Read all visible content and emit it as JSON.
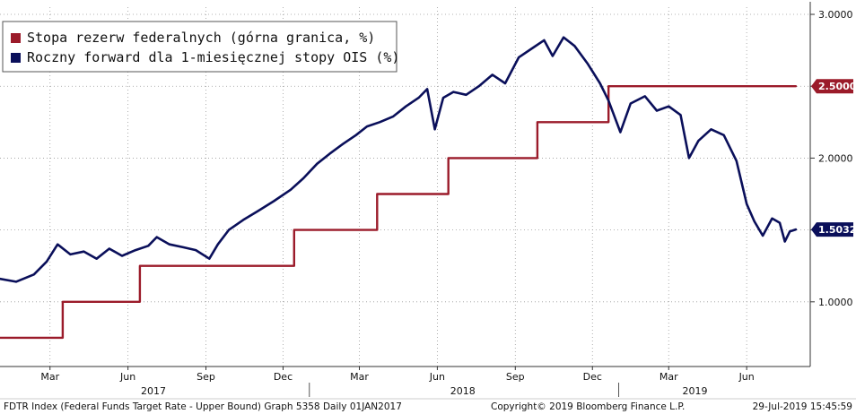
{
  "chart_data": {
    "type": "line",
    "title": "",
    "xlabel": "",
    "ylabel": "",
    "x_range": [
      "2017-01-01",
      "2019-08-15"
    ],
    "ylim": [
      0.55,
      3.05
    ],
    "y_ticks": [
      "3.0000",
      "2.5000",
      "2.0000",
      "1.5000",
      "1.0000"
    ],
    "y_tick_values": [
      3.0,
      2.5,
      2.0,
      1.5,
      1.0
    ],
    "x_month_ticks": [
      {
        "label": "Mar",
        "date": "2017-03-01"
      },
      {
        "label": "Jun",
        "date": "2017-06-01"
      },
      {
        "label": "Sep",
        "date": "2017-09-01"
      },
      {
        "label": "Dec",
        "date": "2017-12-01"
      },
      {
        "label": "Mar",
        "date": "2018-03-01"
      },
      {
        "label": "Jun",
        "date": "2018-06-01"
      },
      {
        "label": "Sep",
        "date": "2018-09-01"
      },
      {
        "label": "Dec",
        "date": "2018-12-01"
      },
      {
        "label": "Mar",
        "date": "2019-03-01"
      },
      {
        "label": "Jun",
        "date": "2019-06-01"
      }
    ],
    "x_year_labels": [
      {
        "label": "2017",
        "date": "2017-07-01"
      },
      {
        "label": "2018",
        "date": "2018-07-01"
      },
      {
        "label": "2019",
        "date": "2019-04-01"
      }
    ],
    "x_year_dividers": [
      "2018-01-01",
      "2019-01-01"
    ],
    "grid": true,
    "legend_position": "top-left",
    "series": [
      {
        "name": "Stopa rezerw federalnych (górna granica, %)",
        "color": "#9b1b2a",
        "style": "step",
        "last_value_label": "2.5000",
        "points": [
          {
            "x": "2017-01-01",
            "y": 0.75
          },
          {
            "x": "2017-03-16",
            "y": 1.0
          },
          {
            "x": "2017-06-15",
            "y": 1.25
          },
          {
            "x": "2017-12-14",
            "y": 1.5
          },
          {
            "x": "2018-03-22",
            "y": 1.75
          },
          {
            "x": "2018-06-14",
            "y": 2.0
          },
          {
            "x": "2018-09-27",
            "y": 2.25
          },
          {
            "x": "2018-12-20",
            "y": 2.5
          },
          {
            "x": "2019-07-29",
            "y": 2.5
          }
        ]
      },
      {
        "name": "Roczny forward dla 1-miesięcznej stopy OIS (%)",
        "color": "#0a0f5a",
        "style": "line",
        "last_value_label": "1.5032",
        "points": [
          {
            "x": "2017-01-01",
            "y": 1.16
          },
          {
            "x": "2017-01-20",
            "y": 1.14
          },
          {
            "x": "2017-02-10",
            "y": 1.19
          },
          {
            "x": "2017-02-25",
            "y": 1.28
          },
          {
            "x": "2017-03-10",
            "y": 1.4
          },
          {
            "x": "2017-03-25",
            "y": 1.33
          },
          {
            "x": "2017-04-10",
            "y": 1.35
          },
          {
            "x": "2017-04-25",
            "y": 1.3
          },
          {
            "x": "2017-05-10",
            "y": 1.37
          },
          {
            "x": "2017-05-25",
            "y": 1.32
          },
          {
            "x": "2017-06-10",
            "y": 1.36
          },
          {
            "x": "2017-06-25",
            "y": 1.39
          },
          {
            "x": "2017-07-05",
            "y": 1.45
          },
          {
            "x": "2017-07-20",
            "y": 1.4
          },
          {
            "x": "2017-08-05",
            "y": 1.38
          },
          {
            "x": "2017-08-20",
            "y": 1.36
          },
          {
            "x": "2017-09-05",
            "y": 1.3
          },
          {
            "x": "2017-09-15",
            "y": 1.4
          },
          {
            "x": "2017-09-28",
            "y": 1.5
          },
          {
            "x": "2017-10-15",
            "y": 1.57
          },
          {
            "x": "2017-11-01",
            "y": 1.63
          },
          {
            "x": "2017-11-20",
            "y": 1.7
          },
          {
            "x": "2017-12-10",
            "y": 1.78
          },
          {
            "x": "2017-12-25",
            "y": 1.86
          },
          {
            "x": "2018-01-10",
            "y": 1.96
          },
          {
            "x": "2018-01-25",
            "y": 2.03
          },
          {
            "x": "2018-02-10",
            "y": 2.1
          },
          {
            "x": "2018-02-25",
            "y": 2.16
          },
          {
            "x": "2018-03-10",
            "y": 2.22
          },
          {
            "x": "2018-03-25",
            "y": 2.25
          },
          {
            "x": "2018-04-10",
            "y": 2.29
          },
          {
            "x": "2018-04-25",
            "y": 2.36
          },
          {
            "x": "2018-05-10",
            "y": 2.42
          },
          {
            "x": "2018-05-20",
            "y": 2.48
          },
          {
            "x": "2018-05-29",
            "y": 2.2
          },
          {
            "x": "2018-06-08",
            "y": 2.42
          },
          {
            "x": "2018-06-20",
            "y": 2.46
          },
          {
            "x": "2018-07-05",
            "y": 2.44
          },
          {
            "x": "2018-07-20",
            "y": 2.5
          },
          {
            "x": "2018-08-05",
            "y": 2.58
          },
          {
            "x": "2018-08-20",
            "y": 2.52
          },
          {
            "x": "2018-09-05",
            "y": 2.7
          },
          {
            "x": "2018-09-20",
            "y": 2.76
          },
          {
            "x": "2018-10-05",
            "y": 2.82
          },
          {
            "x": "2018-10-15",
            "y": 2.71
          },
          {
            "x": "2018-10-28",
            "y": 2.84
          },
          {
            "x": "2018-11-10",
            "y": 2.78
          },
          {
            "x": "2018-11-25",
            "y": 2.66
          },
          {
            "x": "2018-12-10",
            "y": 2.52
          },
          {
            "x": "2018-12-20",
            "y": 2.4
          },
          {
            "x": "2019-01-03",
            "y": 2.18
          },
          {
            "x": "2019-01-15",
            "y": 2.38
          },
          {
            "x": "2019-02-01",
            "y": 2.43
          },
          {
            "x": "2019-02-15",
            "y": 2.33
          },
          {
            "x": "2019-03-01",
            "y": 2.36
          },
          {
            "x": "2019-03-15",
            "y": 2.3
          },
          {
            "x": "2019-03-25",
            "y": 2.0
          },
          {
            "x": "2019-04-05",
            "y": 2.12
          },
          {
            "x": "2019-04-20",
            "y": 2.2
          },
          {
            "x": "2019-05-05",
            "y": 2.16
          },
          {
            "x": "2019-05-20",
            "y": 1.98
          },
          {
            "x": "2019-06-01",
            "y": 1.68
          },
          {
            "x": "2019-06-10",
            "y": 1.56
          },
          {
            "x": "2019-06-20",
            "y": 1.46
          },
          {
            "x": "2019-07-01",
            "y": 1.58
          },
          {
            "x": "2019-07-10",
            "y": 1.55
          },
          {
            "x": "2019-07-16",
            "y": 1.42
          },
          {
            "x": "2019-07-22",
            "y": 1.49
          },
          {
            "x": "2019-07-29",
            "y": 1.5032
          }
        ]
      }
    ]
  },
  "footer": {
    "left": "FDTR Index (Federal Funds Target Rate - Upper Bound) Graph 5358  Daily 01JAN2017",
    "center": "Copyright© 2019 Bloomberg Finance L.P.",
    "right": "29-Jul-2019 15:45:59"
  }
}
